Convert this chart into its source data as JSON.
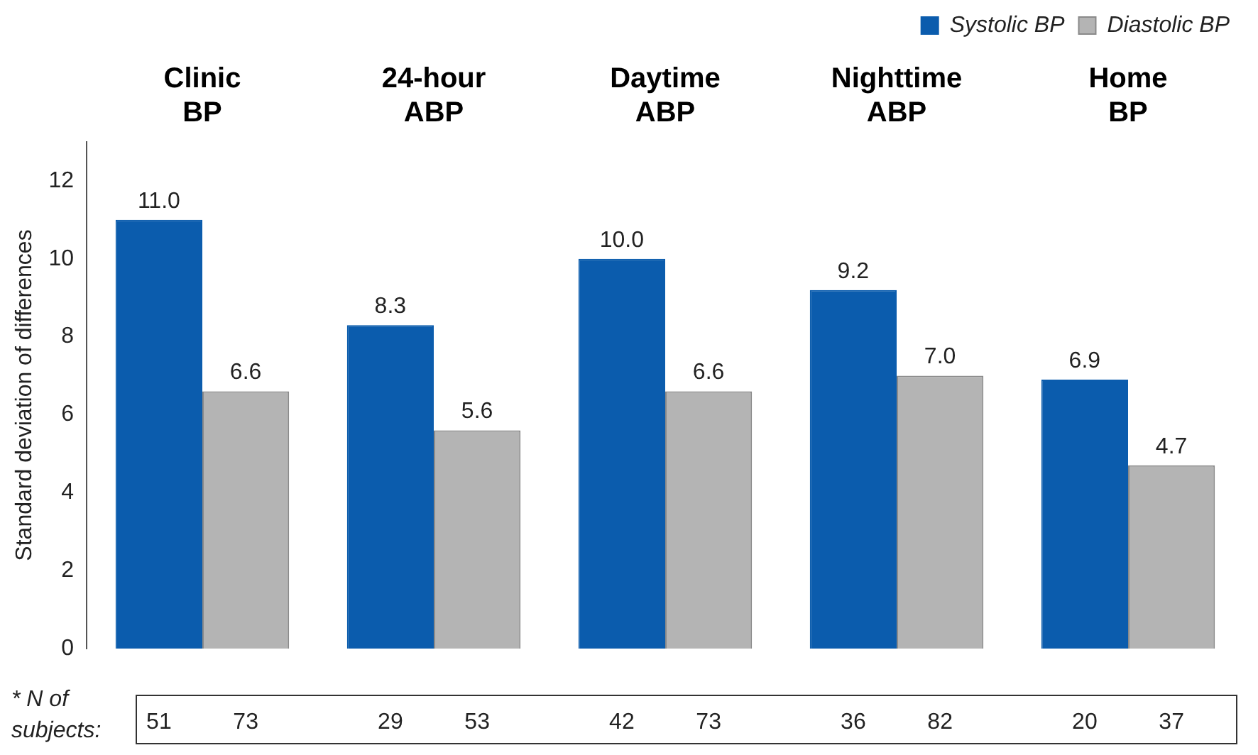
{
  "chart_data": {
    "type": "bar",
    "ylabel": "Standard deviation of differences",
    "categories": [
      "Clinic BP",
      "24-hour ABP",
      "Daytime ABP",
      "Nighttime ABP",
      "Home BP"
    ],
    "series": [
      {
        "name": "Systolic BP",
        "color": "#0b5cad",
        "values": [
          11.0,
          8.3,
          10.0,
          9.2,
          6.9
        ],
        "value_labels": [
          "11.0",
          "8.3",
          "10.0",
          "9.2",
          "6.9"
        ]
      },
      {
        "name": "Diastolic BP",
        "color": "#b4b4b4",
        "values": [
          6.6,
          5.6,
          6.6,
          7.0,
          4.7
        ],
        "value_labels": [
          "6.6",
          "5.6",
          "6.6",
          "7.0",
          "4.7"
        ]
      }
    ],
    "ylim": [
      0,
      13
    ],
    "yticks": [
      0,
      2,
      4,
      6,
      8,
      10,
      12
    ],
    "grid": false,
    "legend": "top right",
    "annotations": [
      "* N of subjects:",
      "51",
      "73",
      "29",
      "53",
      "42",
      "73",
      "36",
      "82",
      "20",
      "37"
    ]
  }
}
